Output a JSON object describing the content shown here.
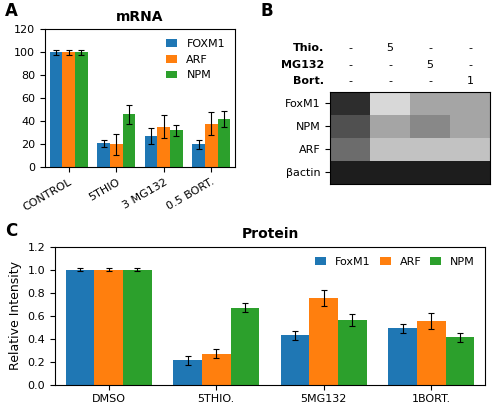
{
  "chart_data": [
    {
      "type": "bar",
      "panel": "A",
      "title": "mRNA",
      "categories": [
        "CONTROL",
        "5THIO",
        "3 MG132",
        "0.5 BORT."
      ],
      "series": [
        {
          "name": "FOXM1",
          "values": [
            100,
            21,
            27,
            20
          ],
          "errors": [
            2,
            3,
            7,
            4
          ]
        },
        {
          "name": "ARF",
          "values": [
            100,
            20,
            35,
            38
          ],
          "errors": [
            2,
            9,
            10,
            10
          ]
        },
        {
          "name": "NPM",
          "values": [
            100,
            46,
            32,
            42
          ],
          "errors": [
            2,
            8,
            5,
            7
          ]
        }
      ],
      "ylim": [
        0,
        120
      ],
      "yticks": [
        0,
        20,
        40,
        60,
        80,
        100,
        120
      ],
      "legend": "upper right"
    },
    {
      "type": "heatmap",
      "panel": "B",
      "header": [
        {
          "label": "Thio.",
          "values": [
            "-",
            "5",
            "-",
            "-"
          ]
        },
        {
          "label": "MG132",
          "values": [
            "-",
            "-",
            "5",
            "-"
          ]
        },
        {
          "label": "Bort.",
          "values": [
            "-",
            "-",
            "-",
            "1"
          ]
        }
      ],
      "rows": [
        "FoxM1",
        "NPM",
        "ARF",
        "βactin"
      ],
      "cells": [
        [
          0.85,
          0.25,
          0.45,
          0.45
        ],
        [
          0.75,
          0.45,
          0.55,
          0.45
        ],
        [
          0.65,
          0.35,
          0.35,
          0.35
        ],
        [
          0.9,
          0.9,
          0.9,
          0.9
        ]
      ],
      "color_range": [
        0,
        1
      ],
      "tick_labels": "y"
    },
    {
      "type": "bar",
      "panel": "C",
      "title": "Protein",
      "categories": [
        "DMSO",
        "5THIO.",
        "5MG132",
        "1BORT."
      ],
      "series": [
        {
          "name": "FoxM1",
          "values": [
            1.0,
            0.21,
            0.43,
            0.49
          ],
          "errors": [
            0.015,
            0.04,
            0.04,
            0.04
          ]
        },
        {
          "name": "ARF",
          "values": [
            1.0,
            0.27,
            0.75,
            0.55
          ],
          "errors": [
            0.015,
            0.04,
            0.07,
            0.07
          ]
        },
        {
          "name": "NPM",
          "values": [
            1.0,
            0.67,
            0.56,
            0.41
          ],
          "errors": [
            0.015,
            0.04,
            0.05,
            0.04
          ]
        }
      ],
      "ylim": [
        0.0,
        1.2
      ],
      "yticks": [
        0.0,
        0.2,
        0.4,
        0.6,
        0.8,
        1.0,
        1.2
      ],
      "ylabel": "Relative Intensity",
      "legend": "upper right"
    }
  ]
}
